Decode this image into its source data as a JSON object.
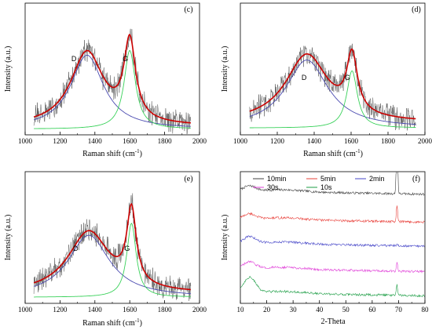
{
  "chart_data": [
    {
      "panel": "(c)",
      "type": "line",
      "xlabel": "Raman shift (cm",
      "xlabel_sup": "-1",
      "xlabel_close": ")",
      "ylabel": "Intensity (a.u.)",
      "xlim": [
        1000,
        2000
      ],
      "ylim": [
        0,
        1
      ],
      "xticks": [
        "1000",
        "1200",
        "1400",
        "1600",
        "1800",
        "2000"
      ],
      "peak_labels": [
        {
          "text": "D",
          "x": 1280,
          "y": 0.58
        },
        {
          "text": "G",
          "x": 1575,
          "y": 0.58
        }
      ],
      "peaks": [
        {
          "name": "D",
          "center": 1355,
          "width": 230,
          "height": 0.62,
          "color": "#4a4ab0"
        },
        {
          "name": "G",
          "center": 1600,
          "width": 80,
          "height": 0.66,
          "color": "#39d15a"
        }
      ],
      "baseline": 0.03,
      "raw_color": "#555555",
      "fit_color": "#cc0000"
    },
    {
      "panel": "(d)",
      "type": "line",
      "xlabel": "Raman shift (cm",
      "xlabel_sup": "-1",
      "xlabel_close": ")",
      "ylabel": "Intensity (a.u.)",
      "xlim": [
        1000,
        2000
      ],
      "ylim": [
        0,
        1
      ],
      "xticks": [
        "1000",
        "1200",
        "1400",
        "1600",
        "1800",
        "2000"
      ],
      "peak_labels": [
        {
          "text": "D",
          "x": 1345,
          "y": 0.42
        },
        {
          "text": "G",
          "x": 1580,
          "y": 0.42
        }
      ],
      "peaks": [
        {
          "name": "D",
          "center": 1360,
          "width": 280,
          "height": 0.57,
          "color": "#4a4ab0"
        },
        {
          "name": "G",
          "center": 1605,
          "width": 70,
          "height": 0.48,
          "color": "#39d15a"
        }
      ],
      "baseline": 0.06,
      "raw_color": "#555555",
      "fit_color": "#cc0000"
    },
    {
      "panel": "(e)",
      "type": "line",
      "xlabel": "Raman shift (cm",
      "xlabel_sup": "-1",
      "xlabel_close": ")",
      "ylabel": "Intensity (a.u.)",
      "xlim": [
        1000,
        2000
      ],
      "ylim": [
        0,
        1
      ],
      "xticks": [
        "1000",
        "1200",
        "1400",
        "1600",
        "1800",
        "2000"
      ],
      "peak_labels": [
        {
          "text": "D",
          "x": 1290,
          "y": 0.4
        },
        {
          "text": "G",
          "x": 1585,
          "y": 0.4
        }
      ],
      "peaks": [
        {
          "name": "D",
          "center": 1365,
          "width": 290,
          "height": 0.52,
          "color": "#4a4ab0"
        },
        {
          "name": "G",
          "center": 1610,
          "width": 65,
          "height": 0.62,
          "color": "#39d15a"
        }
      ],
      "baseline": 0.04,
      "raw_color": "#555555",
      "fit_color": "#cc0000"
    },
    {
      "panel": "(f)",
      "type": "line",
      "xlabel": "2-Theta",
      "ylabel": "Intensity (a.u.)",
      "xlim": [
        10,
        80
      ],
      "xticks": [
        "10",
        "20",
        "30",
        "40",
        "50",
        "60",
        "70",
        "80"
      ],
      "legend": {
        "placement": "top",
        "entries": [
          {
            "name": "10min",
            "color": "#404040"
          },
          {
            "name": "5min",
            "color": "#e8403a"
          },
          {
            "name": "2min",
            "color": "#4646c8"
          },
          {
            "name": "30s",
            "color": "#e040d8"
          },
          {
            "name": "10s",
            "color": "#1e9e46"
          }
        ]
      },
      "series": [
        {
          "name": "10min",
          "color": "#404040",
          "offset": 0.86,
          "hump": 0.04,
          "peak70": 0.6
        },
        {
          "name": "5min",
          "color": "#e8403a",
          "offset": 0.64,
          "hump": 0.04,
          "peak70": 0.12
        },
        {
          "name": "2min",
          "color": "#4646c8",
          "offset": 0.45,
          "hump": 0.05,
          "peak70": 0.02
        },
        {
          "name": "30s",
          "color": "#e040d8",
          "offset": 0.25,
          "hump": 0.05,
          "peak70": 0.07
        },
        {
          "name": "10s",
          "color": "#1e9e46",
          "offset": 0.06,
          "hump": 0.12,
          "peak70": 0.08
        }
      ]
    }
  ]
}
